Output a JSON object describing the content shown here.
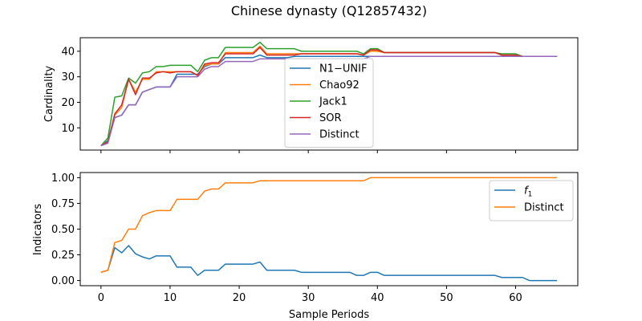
{
  "chart_data": {
    "title": "Chinese dynasty (Q12857432)",
    "shared_x": {
      "label": "Sample Periods",
      "ticks": [
        0,
        10,
        20,
        30,
        40,
        50,
        60
      ],
      "lim": [
        -3,
        69
      ],
      "values": [
        0,
        1,
        2,
        3,
        4,
        5,
        6,
        7,
        8,
        9,
        10,
        11,
        12,
        13,
        14,
        15,
        16,
        17,
        18,
        19,
        20,
        21,
        22,
        23,
        24,
        25,
        26,
        27,
        28,
        29,
        30,
        31,
        32,
        33,
        34,
        35,
        36,
        37,
        38,
        39,
        40,
        41,
        42,
        43,
        44,
        45,
        46,
        47,
        48,
        49,
        50,
        51,
        52,
        53,
        54,
        55,
        56,
        57,
        58,
        59,
        60,
        61,
        62,
        63,
        64,
        65,
        66
      ]
    },
    "panels": [
      {
        "type": "line",
        "ylabel": "Cardinality",
        "ylim": [
          1.3,
          45.3
        ],
        "yticks": [
          10,
          20,
          30,
          40
        ],
        "legend_position": "center",
        "series": [
          {
            "name": "N1−UNIF",
            "color": "#1f77b4",
            "values": [
              3,
              5,
              14,
              15,
              19,
              19,
              24,
              25,
              26,
              26,
              26,
              31,
              31,
              31,
              31,
              34,
              35,
              35,
              37.5,
              37.5,
              37.5,
              37.5,
              37.5,
              38.5,
              37.5,
              37.5,
              37.5,
              37.5,
              38,
              38,
              38,
              38,
              38,
              38,
              38,
              38,
              38,
              38,
              38,
              38,
              38,
              38,
              38,
              38,
              38,
              38,
              38,
              38,
              38,
              38,
              38,
              38,
              38,
              38,
              38,
              38,
              38,
              38,
              38,
              38,
              38,
              38,
              38,
              38,
              38,
              38,
              38
            ]
          },
          {
            "name": "Chao92",
            "color": "#ff7f0e",
            "values": [
              3,
              4.5,
              15,
              18,
              29,
              24,
              29,
              29,
              32,
              32,
              32,
              32,
              32,
              32,
              30.5,
              34.5,
              35,
              35,
              39.5,
              39.5,
              39.5,
              39.5,
              39.5,
              42,
              39,
              39,
              39,
              39,
              39,
              39,
              39,
              39,
              39,
              39,
              39,
              39,
              39,
              39,
              38.5,
              40,
              40,
              39.5,
              39.5,
              39.5,
              39.5,
              39.5,
              39.5,
              39.5,
              39.5,
              39.5,
              39.5,
              39.5,
              39.5,
              39.5,
              39.5,
              39.5,
              39.5,
              39.5,
              38.5,
              38.5,
              38.5,
              38,
              38,
              38,
              38,
              38,
              38
            ]
          },
          {
            "name": "Jack1",
            "color": "#2ca02c",
            "values": [
              3,
              6,
              22,
              22.5,
              29.5,
              27.5,
              31.5,
              32,
              34,
              34,
              34.5,
              34.5,
              34.5,
              34.5,
              32,
              36.5,
              37.5,
              37.5,
              41.5,
              41.5,
              41.5,
              41.5,
              41.5,
              43.5,
              41,
              41,
              41,
              41,
              41,
              40,
              40,
              40,
              40,
              40,
              40,
              40,
              40,
              40,
              39,
              41,
              41,
              39.5,
              39.5,
              39.5,
              39.5,
              39.5,
              39.5,
              39.5,
              39.5,
              39.5,
              39.5,
              39.5,
              39.5,
              39.5,
              39.5,
              39.5,
              39.5,
              39.5,
              39,
              39,
              39,
              38,
              38,
              38,
              38,
              38,
              38
            ]
          },
          {
            "name": "SOR",
            "color": "#d62728",
            "values": [
              3,
              4.5,
              15.5,
              19,
              29,
              23,
              29.5,
              29.5,
              31.5,
              32,
              31.5,
              32,
              32,
              32,
              30.5,
              35,
              35.5,
              35.5,
              39,
              39,
              39,
              39,
              39,
              41.5,
              38.5,
              38.5,
              38.5,
              38.5,
              38.5,
              39,
              39,
              39,
              39,
              39,
              39,
              39,
              39,
              39,
              38.5,
              40.5,
              40.5,
              39.5,
              39.5,
              39.5,
              39.5,
              39.5,
              39.5,
              39.5,
              39.5,
              39.5,
              39.5,
              39.5,
              39.5,
              39.5,
              39.5,
              39.5,
              39.5,
              39.5,
              38.5,
              38.5,
              38.5,
              38,
              38,
              38,
              38,
              38,
              38
            ]
          },
          {
            "name": "Distinct",
            "color": "#9467bd",
            "values": [
              3,
              4,
              14,
              15,
              19,
              19,
              24,
              25,
              26,
              26,
              26,
              30,
              30,
              30,
              30,
              33,
              34,
              34,
              36,
              36,
              36,
              36,
              36,
              37,
              37,
              37,
              37,
              37,
              37,
              37,
              37,
              37,
              37,
              37,
              37,
              37,
              37,
              37,
              37,
              38,
              38,
              38,
              38,
              38,
              38,
              38,
              38,
              38,
              38,
              38,
              38,
              38,
              38,
              38,
              38,
              38,
              38,
              38,
              38,
              38,
              38,
              38,
              38,
              38,
              38,
              38,
              38
            ]
          }
        ]
      },
      {
        "type": "line",
        "ylabel": "Indicators",
        "ylim": [
          -0.05,
          1.05
        ],
        "yticks": [
          0.0,
          0.25,
          0.5,
          0.75,
          1.0
        ],
        "ytick_labels": [
          "0.00",
          "0.25",
          "0.50",
          "0.75",
          "1.00"
        ],
        "legend_position": "upper right",
        "series": [
          {
            "name": "f",
            "name_subscript": "1",
            "color": "#1f77b4",
            "values": [
              0.08,
              0.1,
              0.32,
              0.27,
              0.34,
              0.26,
              0.23,
              0.21,
              0.24,
              0.24,
              0.24,
              0.13,
              0.13,
              0.13,
              0.05,
              0.1,
              0.1,
              0.1,
              0.16,
              0.16,
              0.16,
              0.16,
              0.16,
              0.18,
              0.1,
              0.1,
              0.1,
              0.1,
              0.1,
              0.08,
              0.08,
              0.08,
              0.08,
              0.08,
              0.08,
              0.08,
              0.08,
              0.05,
              0.05,
              0.08,
              0.08,
              0.05,
              0.05,
              0.05,
              0.05,
              0.05,
              0.05,
              0.05,
              0.05,
              0.05,
              0.05,
              0.05,
              0.05,
              0.05,
              0.05,
              0.05,
              0.05,
              0.05,
              0.03,
              0.03,
              0.03,
              0.03,
              0,
              0,
              0,
              0,
              0
            ]
          },
          {
            "name": "Distinct",
            "color": "#ff7f0e",
            "values": [
              0.08,
              0.1,
              0.37,
              0.39,
              0.5,
              0.5,
              0.63,
              0.66,
              0.68,
              0.68,
              0.68,
              0.79,
              0.79,
              0.79,
              0.79,
              0.87,
              0.89,
              0.89,
              0.95,
              0.95,
              0.95,
              0.95,
              0.95,
              0.97,
              0.97,
              0.97,
              0.97,
              0.97,
              0.97,
              0.97,
              0.97,
              0.97,
              0.97,
              0.97,
              0.97,
              0.97,
              0.97,
              0.97,
              0.97,
              1,
              1,
              1,
              1,
              1,
              1,
              1,
              1,
              1,
              1,
              1,
              1,
              1,
              1,
              1,
              1,
              1,
              1,
              1,
              1,
              1,
              1,
              1,
              1,
              1,
              1,
              1,
              1
            ]
          }
        ]
      }
    ]
  }
}
